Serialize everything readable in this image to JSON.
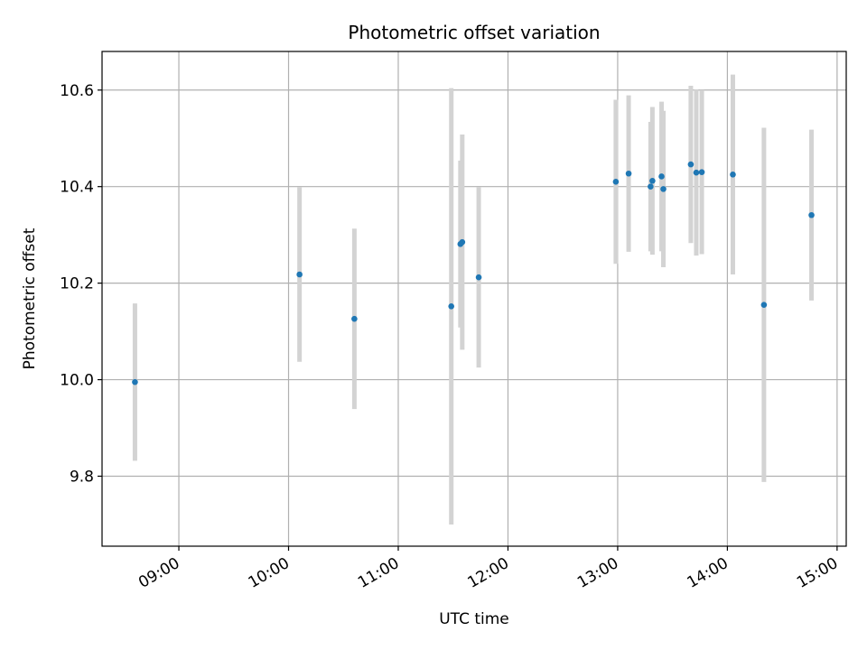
{
  "chart_data": {
    "type": "scatter",
    "title": "Photometric offset variation",
    "xlabel": "UTC time",
    "ylabel": "Photometric offset",
    "xlim": [
      "08:18",
      "15:05"
    ],
    "ylim": [
      9.655,
      10.68
    ],
    "xticks": [
      "09:00",
      "10:00",
      "11:00",
      "12:00",
      "13:00",
      "14:00",
      "15:00"
    ],
    "yticks": [
      9.8,
      10.0,
      10.2,
      10.4,
      10.6
    ],
    "grid": true,
    "point_color": "#1f77b4",
    "errorbar_color": "#d3d3d3",
    "points": [
      {
        "x": "08:36",
        "y": 9.995,
        "err": 0.163
      },
      {
        "x": "10:06",
        "y": 10.218,
        "err": 0.181
      },
      {
        "x": "10:36",
        "y": 10.126,
        "err": 0.187
      },
      {
        "x": "11:29",
        "y": 10.152,
        "err": 0.452
      },
      {
        "x": "11:34",
        "y": 10.281,
        "err": 0.173
      },
      {
        "x": "11:35",
        "y": 10.285,
        "err": 0.223
      },
      {
        "x": "11:44",
        "y": 10.212,
        "err": 0.187
      },
      {
        "x": "12:59",
        "y": 10.41,
        "err": 0.17
      },
      {
        "x": "13:06",
        "y": 10.427,
        "err": 0.162
      },
      {
        "x": "13:18",
        "y": 10.4,
        "err": 0.134
      },
      {
        "x": "13:19",
        "y": 10.412,
        "err": 0.153
      },
      {
        "x": "13:24",
        "y": 10.421,
        "err": 0.155
      },
      {
        "x": "13:25",
        "y": 10.395,
        "err": 0.162
      },
      {
        "x": "13:40",
        "y": 10.446,
        "err": 0.163
      },
      {
        "x": "13:43",
        "y": 10.429,
        "err": 0.172
      },
      {
        "x": "13:46",
        "y": 10.43,
        "err": 0.17
      },
      {
        "x": "14:03",
        "y": 10.425,
        "err": 0.207
      },
      {
        "x": "14:20",
        "y": 10.155,
        "err": 0.367
      },
      {
        "x": "14:46",
        "y": 10.341,
        "err": 0.177
      }
    ]
  }
}
